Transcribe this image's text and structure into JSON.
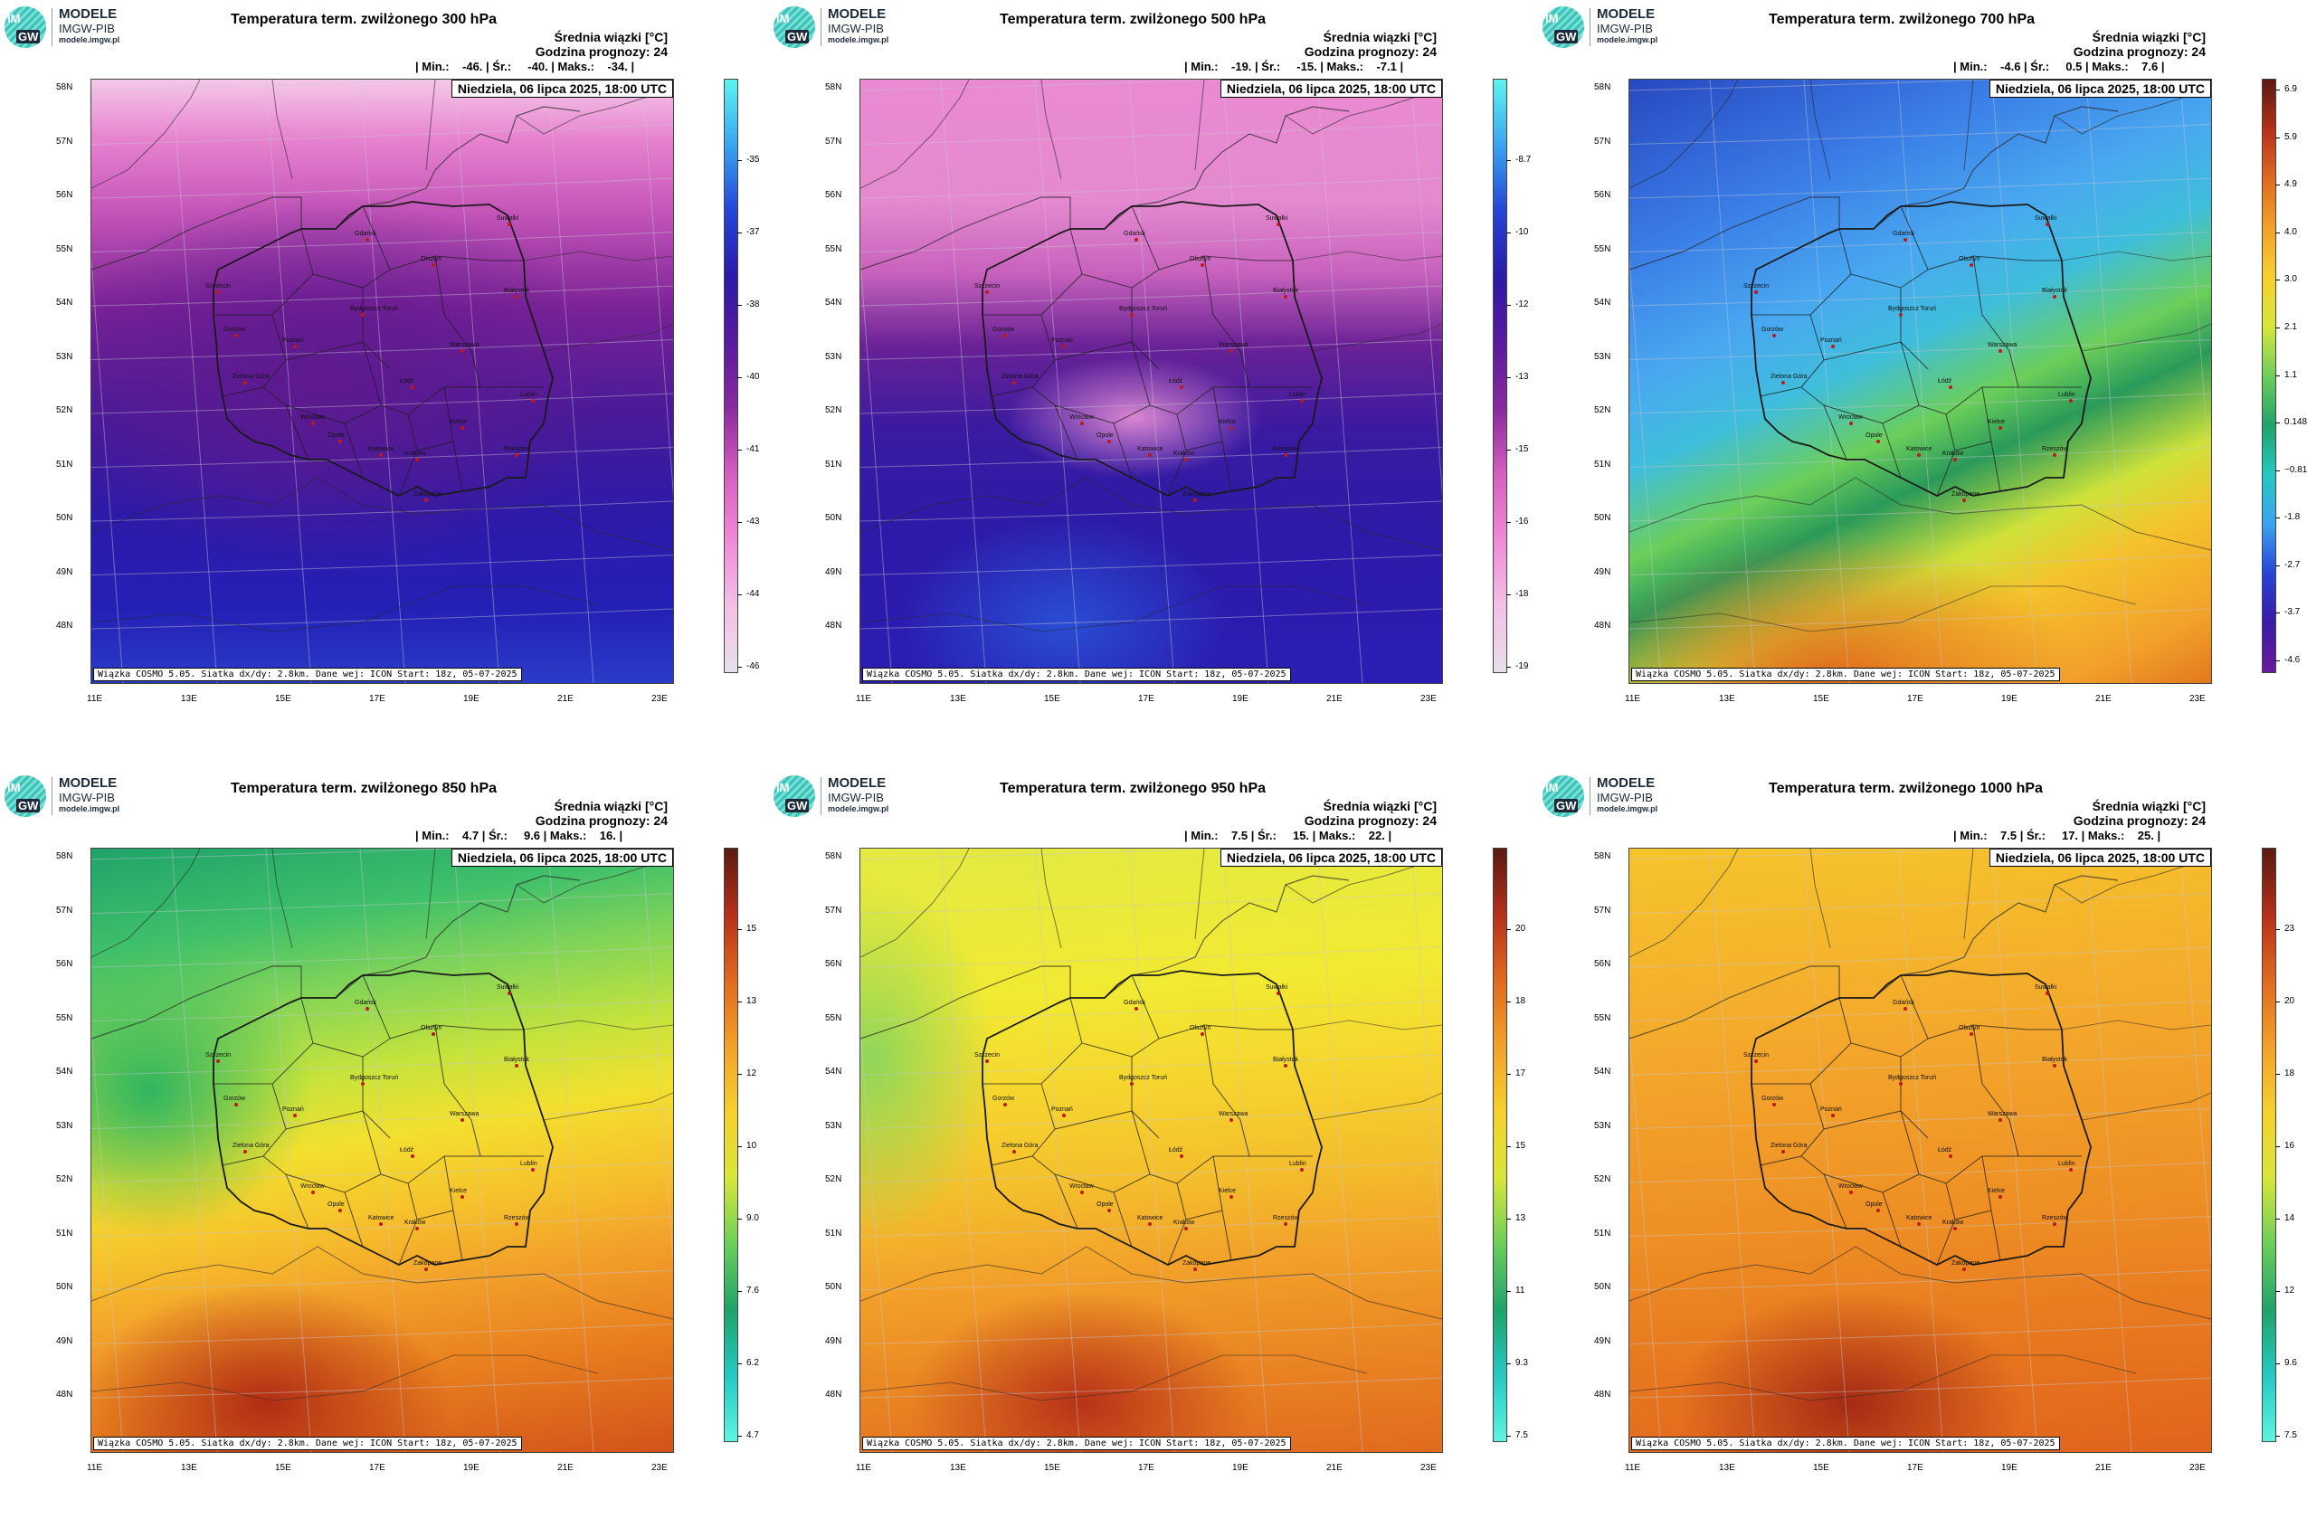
{
  "brand": {
    "line1": "MODELE",
    "line2": "IMGW-PIB",
    "line3": "modele.imgw.pl",
    "logo_im": "IM",
    "logo_gw": "GW"
  },
  "common": {
    "info_line1": "Średnia wiązki [°C]",
    "info_line2": "Godzina prognozy: 24",
    "date": "Niedziela, 06 lipca 2025, 18:00 UTC",
    "footer": "Wiązka COSMO 5.05. Siatka dx/dy: 2.8km. Dane wej: ICON Start: 18z, 05-07-2025",
    "lat_labels": [
      "58N",
      "57N",
      "56N",
      "55N",
      "54N",
      "53N",
      "52N",
      "51N",
      "50N",
      "49N",
      "48N"
    ],
    "lon_labels": [
      "11E",
      "13E",
      "15E",
      "17E",
      "19E",
      "21E",
      "23E"
    ],
    "cities": [
      "Gdańsk",
      "Suwałki",
      "Olsztyn",
      "Białystok",
      "Szczecin",
      "Bydgoszcz Toruń",
      "Gorzów",
      "Poznań",
      "Warszawa",
      "Zielona Góra",
      "Łódź",
      "Lublin",
      "Wrocław",
      "Opole",
      "Kielce",
      "Katowice",
      "Kraków",
      "Rzeszów",
      "Zakopane"
    ]
  },
  "panels": [
    {
      "title": "Temperatura term. zwilżonego 300 hPa",
      "stats": "| Min.:    -46. | Śr.:     -40. | Maks.:    -34. |",
      "palette": "p300",
      "cbar_labels": [
        "-35",
        "-37",
        "-38",
        "-40",
        "-41",
        "-43",
        "-44",
        "-46"
      ],
      "cbar_palette": [
        "#5df5f0",
        "#3aa4f0",
        "#2444d8",
        "#2c1aa8",
        "#5a1a9e",
        "#8a2a9e",
        "#d65fc0",
        "#f08ad8",
        "#f4c0e6",
        "#e8e0ec"
      ]
    },
    {
      "title": "Temperatura term. zwilżonego 500 hPa",
      "stats": "| Min.:    -19. | Śr.:     -15. | Maks.:    -7.1 |",
      "palette": "p500",
      "cbar_labels": [
        "-8.7",
        "-10",
        "-12",
        "-13",
        "-15",
        "-16",
        "-18",
        "-19"
      ],
      "cbar_palette": [
        "#5df5f0",
        "#3aa4f0",
        "#2444d8",
        "#2c1aa8",
        "#5a1a9e",
        "#8a2a9e",
        "#d65fc0",
        "#f08ad8",
        "#f4c0e6",
        "#e8e0ec"
      ]
    },
    {
      "title": "Temperatura term. zwilżonego 700 hPa",
      "stats": "| Min.:    -4.6 | Śr.:     0.5 | Maks.:    7.6 |",
      "palette": "p700",
      "cbar_labels": [
        "6.9",
        "5.9",
        "4.9",
        "4.0",
        "3.0",
        "2.1",
        "1.1",
        "0.148",
        "−0.810",
        "-1.8",
        "-2.7",
        "-3.7",
        "-4.6"
      ],
      "cbar_palette": [
        "#5a1a10",
        "#b5301a",
        "#e06a1e",
        "#f2a12a",
        "#f6d02e",
        "#d8e63a",
        "#6ccf5a",
        "#1fa36a",
        "#24c9c4",
        "#3aa4f0",
        "#2444d8",
        "#3a1aa8",
        "#6a1a9e"
      ]
    },
    {
      "title": "Temperatura term. zwilżonego 850 hPa",
      "stats": "| Min.:    4.7 | Śr.:     9.6 | Maks.:    16. |",
      "palette": "p850",
      "cbar_labels": [
        "15",
        "13",
        "12",
        "10",
        "9.0",
        "7.6",
        "6.2",
        "4.7"
      ],
      "cbar_palette": [
        "#5a1a10",
        "#b5301a",
        "#e06a1e",
        "#f2a12a",
        "#f6d02e",
        "#d8e63a",
        "#6ccf5a",
        "#1fa36a",
        "#24c9c4",
        "#5df5e0"
      ]
    },
    {
      "title": "Temperatura term. zwilżonego 950 hPa",
      "stats": "| Min.:    7.5 | Śr.:     15. | Maks.:    22. |",
      "palette": "p950",
      "cbar_labels": [
        "20",
        "18",
        "17",
        "15",
        "13",
        "11",
        "9.3",
        "7.5"
      ],
      "cbar_palette": [
        "#5a1a10",
        "#b5301a",
        "#e06a1e",
        "#f2a12a",
        "#f6d02e",
        "#d8e63a",
        "#6ccf5a",
        "#1fa36a",
        "#24c9c4",
        "#5df5e0"
      ]
    },
    {
      "title": "Temperatura term. zwilżonego 1000 hPa",
      "stats": "| Min.:    7.5 | Śr.:     17. | Maks.:    25. |",
      "palette": "p1000",
      "cbar_labels": [
        "23",
        "20",
        "18",
        "16",
        "14",
        "12",
        "9.6",
        "7.5"
      ],
      "cbar_palette": [
        "#5a1a10",
        "#b5301a",
        "#e06a1e",
        "#f2a12a",
        "#f6d02e",
        "#d8e63a",
        "#6ccf5a",
        "#1fa36a",
        "#24c9c4",
        "#5df5e0"
      ]
    }
  ]
}
